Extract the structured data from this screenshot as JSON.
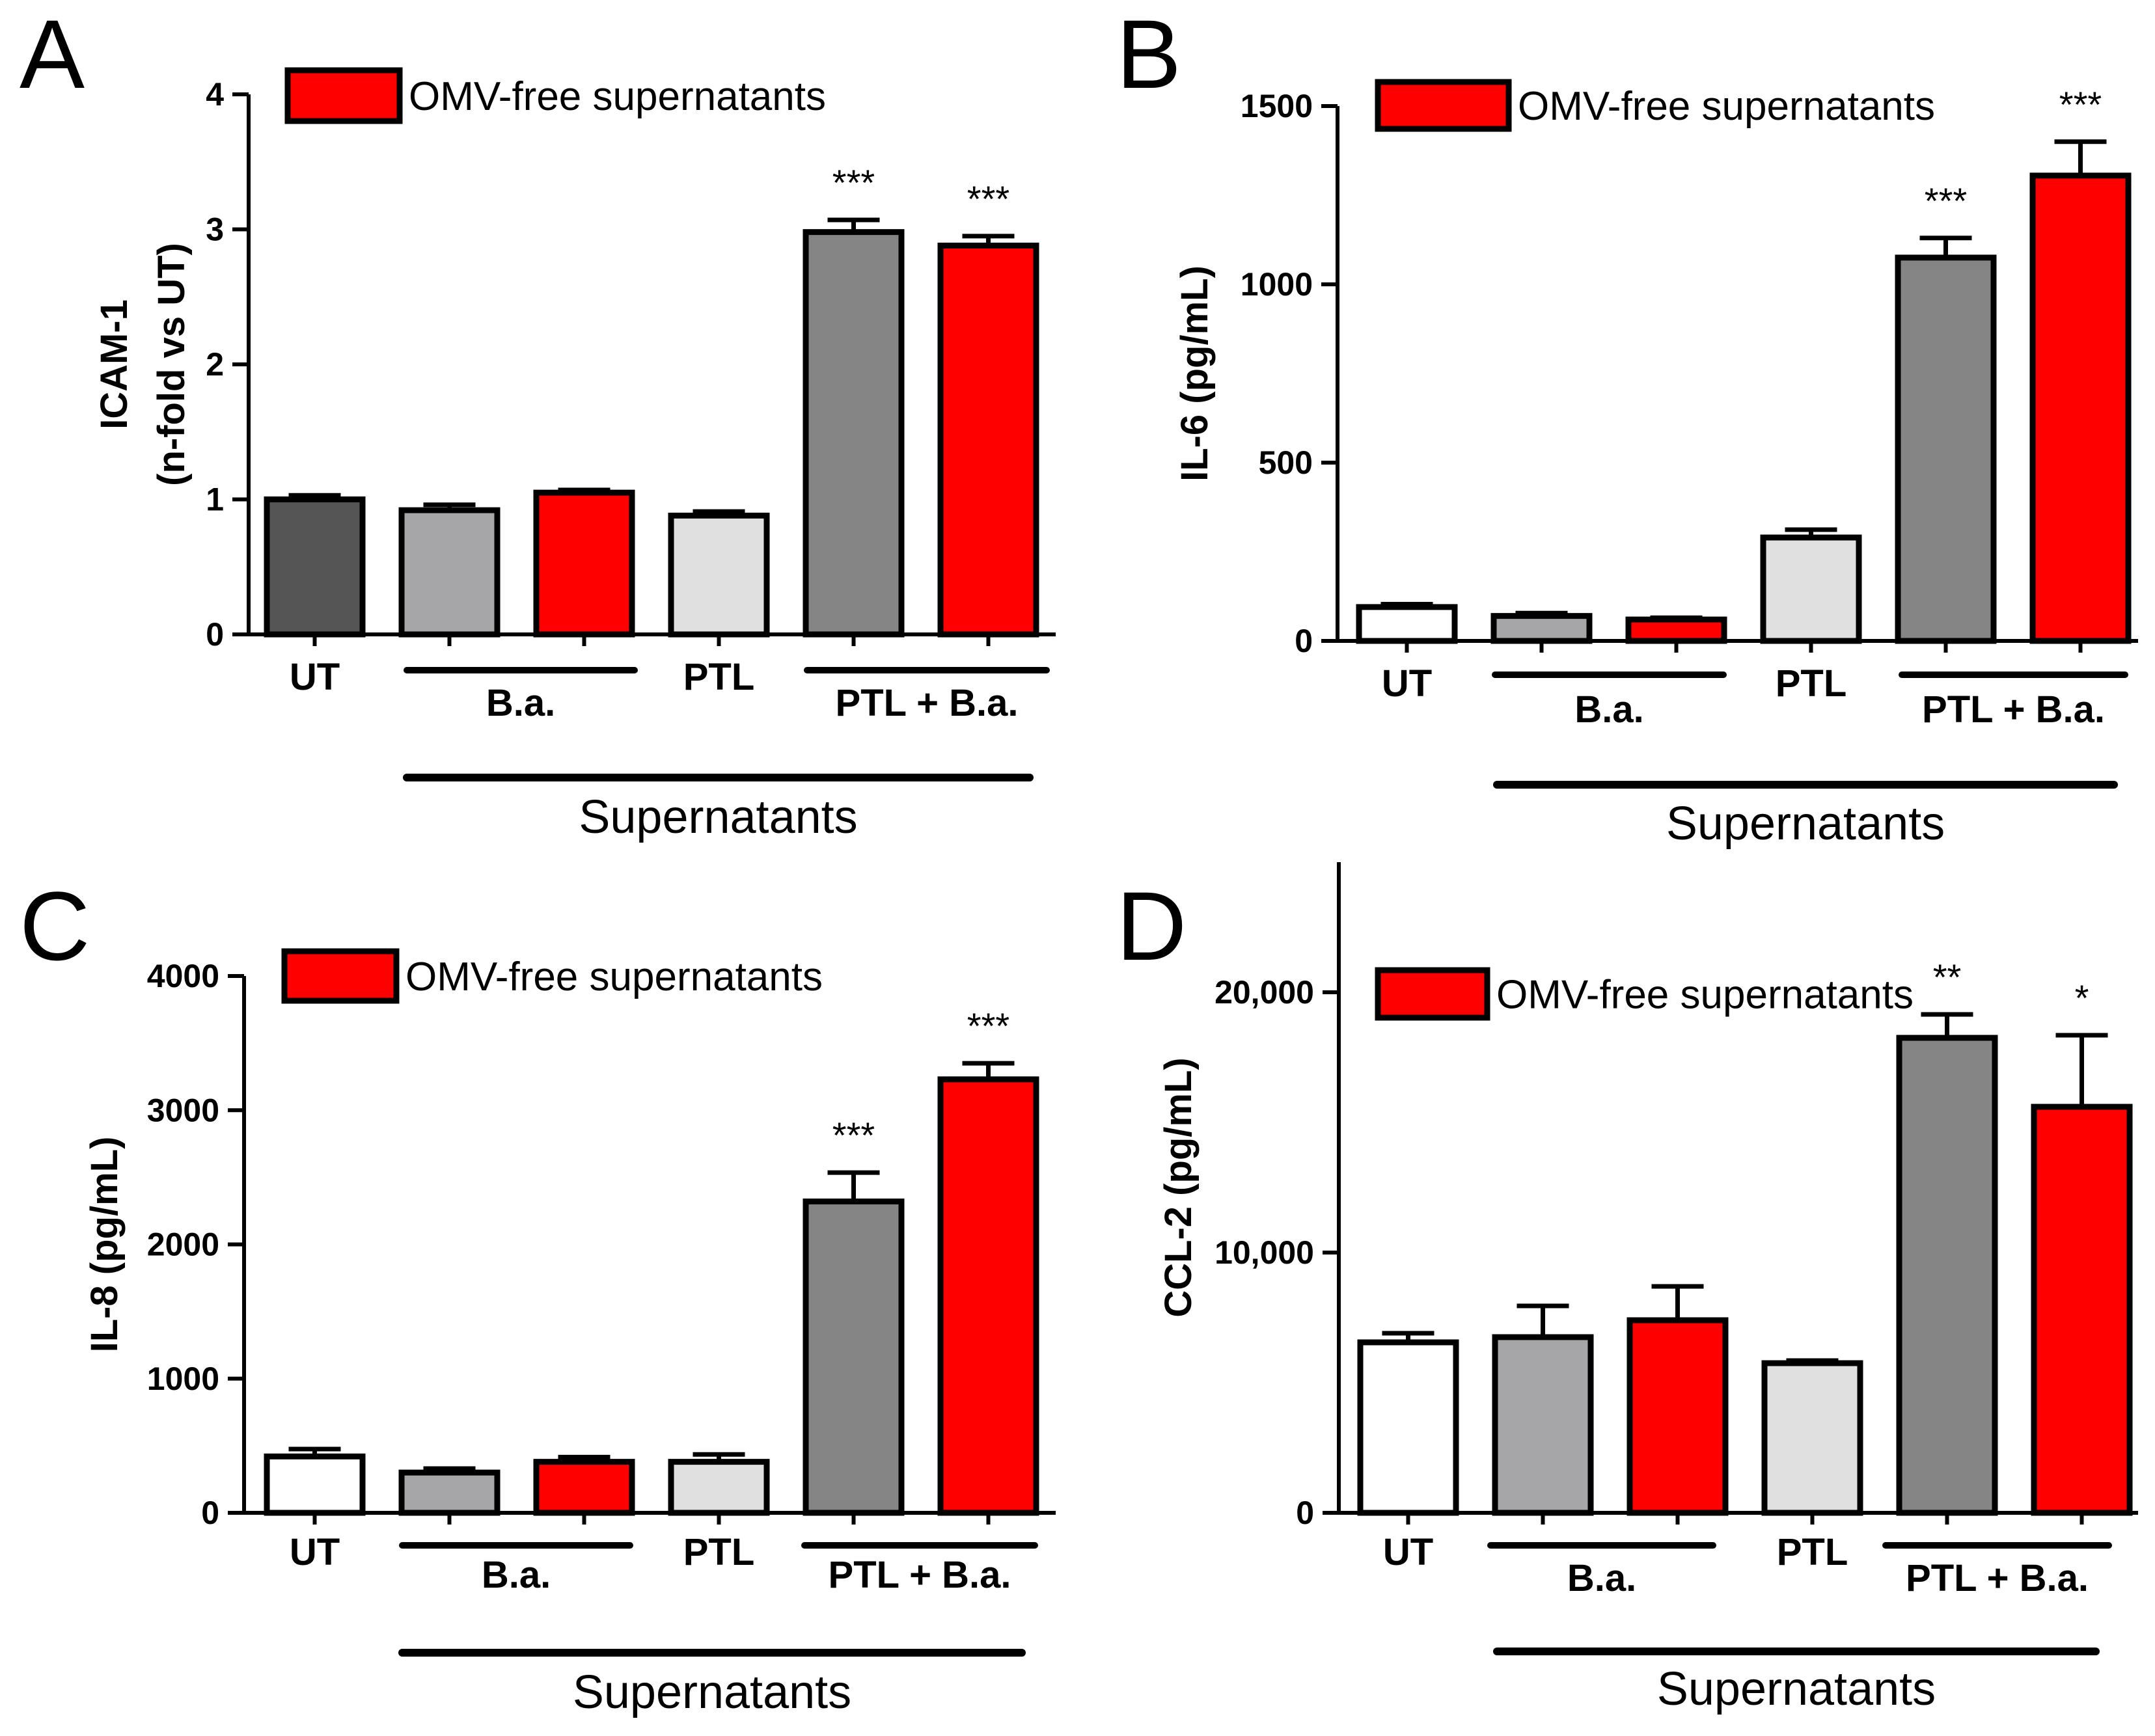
{
  "colors": {
    "UT_dark": "#555555",
    "white": "#ffffff",
    "grey": "#a6a6a8",
    "red": "#ff0000",
    "light": "#e0e0e0",
    "dark_grey": "#858585",
    "black": "#000000"
  },
  "chart_data": [
    {
      "panel": "A",
      "type": "bar",
      "ylabel_line1": "ICAM-1",
      "ylabel_line2": "(n-fold vs UT)",
      "ylim": [
        0,
        4
      ],
      "yticks": [
        0,
        1,
        2,
        3,
        4
      ],
      "ytick_labels": [
        "0",
        "1",
        "2",
        "3",
        "4"
      ],
      "legend": "OMV-free supernatants",
      "bars": [
        {
          "value": 1.0,
          "error": 0.03,
          "color": "UT_dark",
          "sig": ""
        },
        {
          "value": 0.92,
          "error": 0.04,
          "color": "grey",
          "sig": ""
        },
        {
          "value": 1.05,
          "error": 0.02,
          "color": "red",
          "sig": ""
        },
        {
          "value": 0.88,
          "error": 0.03,
          "color": "light",
          "sig": ""
        },
        {
          "value": 2.98,
          "error": 0.09,
          "color": "dark_grey",
          "sig": "***"
        },
        {
          "value": 2.88,
          "error": 0.07,
          "color": "red",
          "sig": "***"
        }
      ],
      "categories": [
        "UT",
        "B.a.",
        "PTL",
        "PTL + B.a."
      ],
      "group_label": "Supernatants"
    },
    {
      "panel": "B",
      "type": "bar",
      "ylabel_line1": "IL-6 (pg/mL)",
      "ylabel_line2": "",
      "ylim": [
        0,
        1500
      ],
      "yticks": [
        0,
        500,
        1000,
        1500
      ],
      "ytick_labels": [
        "0",
        "500",
        "1000",
        "1500"
      ],
      "legend": "OMV-free supernatants",
      "bars": [
        {
          "value": 95,
          "error": 8,
          "color": "white",
          "sig": ""
        },
        {
          "value": 70,
          "error": 8,
          "color": "grey",
          "sig": ""
        },
        {
          "value": 60,
          "error": 5,
          "color": "red",
          "sig": ""
        },
        {
          "value": 290,
          "error": 22,
          "color": "light",
          "sig": ""
        },
        {
          "value": 1075,
          "error": 55,
          "color": "dark_grey",
          "sig": "***"
        },
        {
          "value": 1305,
          "error": 95,
          "color": "red",
          "sig": "***"
        }
      ],
      "categories": [
        "UT",
        "B.a.",
        "PTL",
        "PTL + B.a."
      ],
      "group_label": "Supernatants"
    },
    {
      "panel": "C",
      "type": "bar",
      "ylabel_line1": "IL-8 (pg/mL)",
      "ylabel_line2": "",
      "ylim": [
        0,
        4000
      ],
      "yticks": [
        0,
        1000,
        2000,
        3000,
        4000
      ],
      "ytick_labels": [
        "0",
        "1000",
        "2000",
        "3000",
        "4000"
      ],
      "legend": "OMV-free supernatants",
      "bars": [
        {
          "value": 420,
          "error": 55,
          "color": "white",
          "sig": ""
        },
        {
          "value": 300,
          "error": 30,
          "color": "grey",
          "sig": ""
        },
        {
          "value": 380,
          "error": 35,
          "color": "red",
          "sig": ""
        },
        {
          "value": 380,
          "error": 55,
          "color": "light",
          "sig": ""
        },
        {
          "value": 2320,
          "error": 215,
          "color": "dark_grey",
          "sig": "***"
        },
        {
          "value": 3230,
          "error": 120,
          "color": "red",
          "sig": "***"
        }
      ],
      "categories": [
        "UT",
        "B.a.",
        "PTL",
        "PTL + B.a."
      ],
      "group_label": "Supernatants"
    },
    {
      "panel": "D",
      "type": "bar",
      "ylabel_line1": "CCL-2 (pg/mL)",
      "ylabel_line2": "",
      "ylim": [
        0,
        25000
      ],
      "yticks": [
        0,
        10000,
        20000
      ],
      "ytick_labels": [
        "0",
        "10,000",
        "20,000"
      ],
      "legend": "OMV-free supernatants",
      "bars": [
        {
          "value": 6550,
          "error": 350,
          "color": "white",
          "sig": ""
        },
        {
          "value": 6750,
          "error": 1200,
          "color": "grey",
          "sig": ""
        },
        {
          "value": 7400,
          "error": 1300,
          "color": "red",
          "sig": ""
        },
        {
          "value": 5750,
          "error": 100,
          "color": "light",
          "sig": ""
        },
        {
          "value": 18250,
          "error": 900,
          "color": "dark_grey",
          "sig": "**"
        },
        {
          "value": 15600,
          "error": 2750,
          "color": "red",
          "sig": "*"
        }
      ],
      "categories": [
        "UT",
        "B.a.",
        "PTL",
        "PTL + B.a."
      ],
      "group_label": "Supernatants"
    }
  ]
}
